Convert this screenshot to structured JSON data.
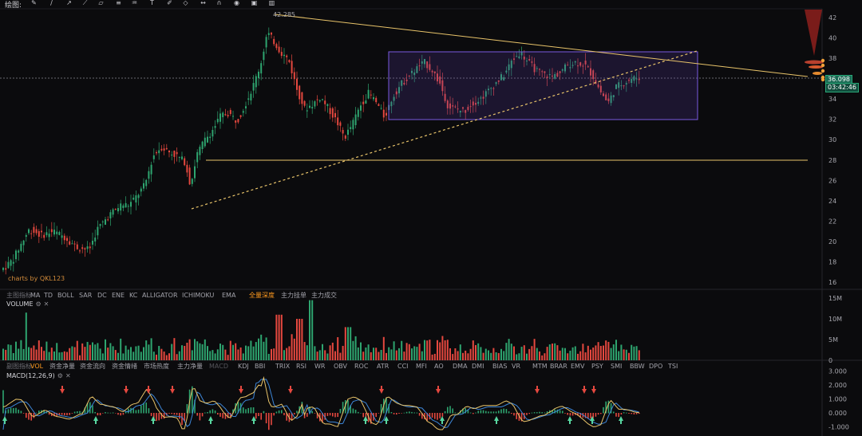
{
  "toolbar": {
    "label": "绘图:",
    "tools": [
      "pen-icon",
      "line-icon",
      "arrow-icon",
      "ray-icon",
      "channel-icon",
      "fib-icon",
      "pattern-icon",
      "text-icon",
      "brush-icon",
      "shape-icon",
      "measure-icon",
      "magnet-icon",
      "eye-icon",
      "lock-icon",
      "trash-icon"
    ]
  },
  "main_chart": {
    "high_label": "42.285",
    "watermark": "charts by QKL123",
    "price_ticks": [
      "42",
      "40",
      "38",
      "36",
      "34",
      "32",
      "30",
      "28",
      "26",
      "24",
      "22",
      "20",
      "18",
      "16"
    ],
    "current_price": "36.098",
    "countdown": "03:42:46",
    "colors": {
      "up": "#2ea56f",
      "down": "#e5483f",
      "trendline": "#e9c46a",
      "box": "#6a4fcf",
      "badge": "#1b6b55"
    }
  },
  "indicator_bar": {
    "items": [
      "主图指标",
      "MA",
      "TD",
      "BOLL",
      "SAR",
      "DC",
      "ENE",
      "KC",
      "ALLIGATOR",
      "ICHIMOKU",
      "EMA",
      "全量深度",
      "主力挂单",
      "主力成交"
    ],
    "active": "全量深度"
  },
  "volume_pane": {
    "title": "VOLUME",
    "ticks": [
      "15M",
      "10M",
      "5M",
      "0"
    ]
  },
  "sub_indicator_bar": {
    "items": [
      "副图指标",
      "VOL",
      "资金净量",
      "资金流向",
      "资金情绪",
      "市场热度",
      "主力净量",
      "MACD",
      "KDJ",
      "BBI",
      "TRIX",
      "RSI",
      "WR",
      "OBV",
      "ROC",
      "ATR",
      "CCI",
      "MFI",
      "AO",
      "DMA",
      "DMI",
      "BIAS",
      "VR",
      "MTM",
      "BRAR",
      "EMV",
      "PSY",
      "SMI",
      "BBW",
      "DPO",
      "TSI"
    ],
    "active": "VOL"
  },
  "macd_pane": {
    "title": "MACD(12,26,9)",
    "ticks": [
      "3.000",
      "2.000",
      "1.000",
      "0.000",
      "-1.000"
    ]
  }
}
